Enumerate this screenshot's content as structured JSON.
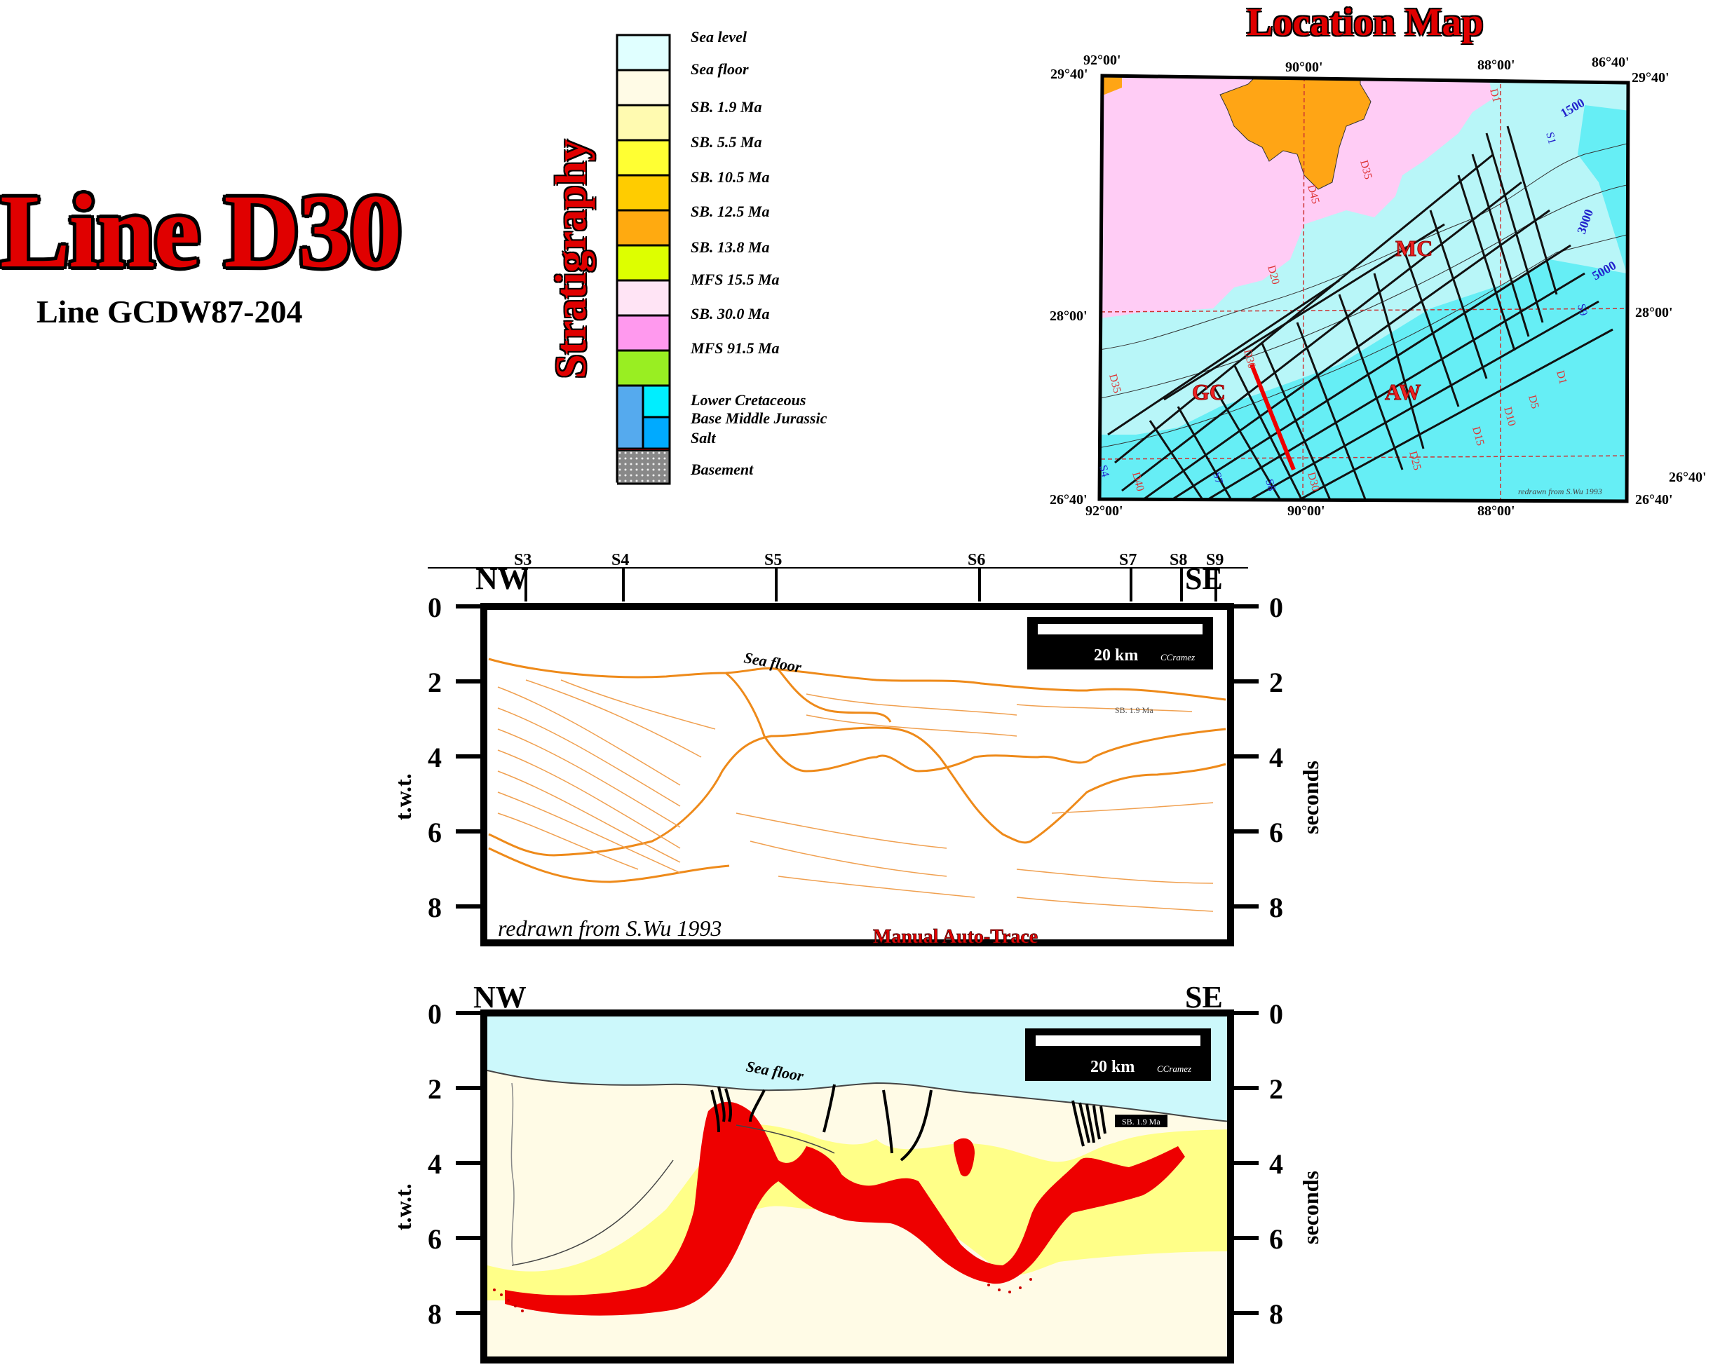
{
  "header": {
    "title": "Line D30",
    "subtitle": "Line GCDW87-204"
  },
  "stratigraphy": {
    "title": "Stratigraphy",
    "units": [
      {
        "label": "Sea level",
        "color": "#e0ffff"
      },
      {
        "label": "Sea floor",
        "color": "#fffbe6"
      },
      {
        "label": "SB. 1.9 Ma",
        "color": "#fffab0"
      },
      {
        "label": "SB. 5.5 Ma",
        "color": "#ffff33"
      },
      {
        "label": "SB. 10.5 Ma",
        "color": "#ffcc00"
      },
      {
        "label": "SB. 12.5 Ma",
        "color": "#ffaa10"
      },
      {
        "label": "SB. 13.8 Ma",
        "color": "#ddff00"
      },
      {
        "label": "MFS 15.5 Ma",
        "color": "#ffe4f5"
      },
      {
        "label": "SB. 30.0 Ma",
        "color": "#ff99ee"
      },
      {
        "label": "MFS 91.5 Ma",
        "color": "#99ee22"
      },
      {
        "label": "Lower Cretaceous",
        "color": "#55aaee"
      },
      {
        "label": "Base Middle Jurassic",
        "color": "#00ccff"
      },
      {
        "label": "Salt",
        "color": "#ee0000"
      },
      {
        "label": "Basement",
        "color": "#999999"
      }
    ]
  },
  "location_map": {
    "title": "Location Map",
    "coords": {
      "top_left_lat": "29°40'",
      "top_right_lat": "29°40'",
      "mid_left_lat": "28°00'",
      "mid_right_lat": "28°00'",
      "bot_left_lat": "26°40'",
      "bot_right_lat": "26°40'",
      "bot_right_lat_outer": "26°40'",
      "top_lon_1": "92°00'",
      "top_lon_2": "90°00'",
      "top_lon_3": "88°00'",
      "top_lon_4": "86°40'",
      "bot_lon_1": "92°00'",
      "bot_lon_2": "90°00'",
      "bot_lon_3": "88°00'"
    },
    "regions": {
      "mc": "MC",
      "gc": "GC",
      "aw": "AW"
    },
    "contours": {
      "c1": "1500",
      "c2": "3000",
      "c3": "5000"
    },
    "credit": "redrawn from S.Wu 1993",
    "dip_labels": [
      "D1",
      "D5",
      "D10",
      "D15",
      "D20",
      "D25",
      "D30",
      "D35",
      "D40",
      "D45"
    ],
    "strike_labels": [
      "S1",
      "S2",
      "S3",
      "S4",
      "S5",
      "S6",
      "S7",
      "S8",
      "S9"
    ]
  },
  "top_section": {
    "shotpoints": [
      "S3",
      "S4",
      "S5",
      "S6",
      "S7",
      "S8",
      "S9"
    ],
    "nw": "NW",
    "se": "SE",
    "y_ticks": [
      "0",
      "2",
      "4",
      "6",
      "8"
    ],
    "y_label_left": "t.w.t.",
    "y_label_right": "seconds",
    "scale": "20 km",
    "scale_author": "CCramez",
    "sea_floor": "Sea floor",
    "sb_label": "SB. 1.9 Ma",
    "credit": "redrawn from S.Wu 1993",
    "method": "Manual Auto-Trace"
  },
  "bottom_section": {
    "nw": "NW",
    "se": "SE",
    "y_ticks": [
      "0",
      "2",
      "4",
      "6",
      "8"
    ],
    "y_label_left": "t.w.t.",
    "y_label_right": "seconds",
    "scale": "20 km",
    "scale_author": "CCramez",
    "sea_floor": "Sea floor",
    "sb_label": "SB. 1.9 Ma"
  }
}
